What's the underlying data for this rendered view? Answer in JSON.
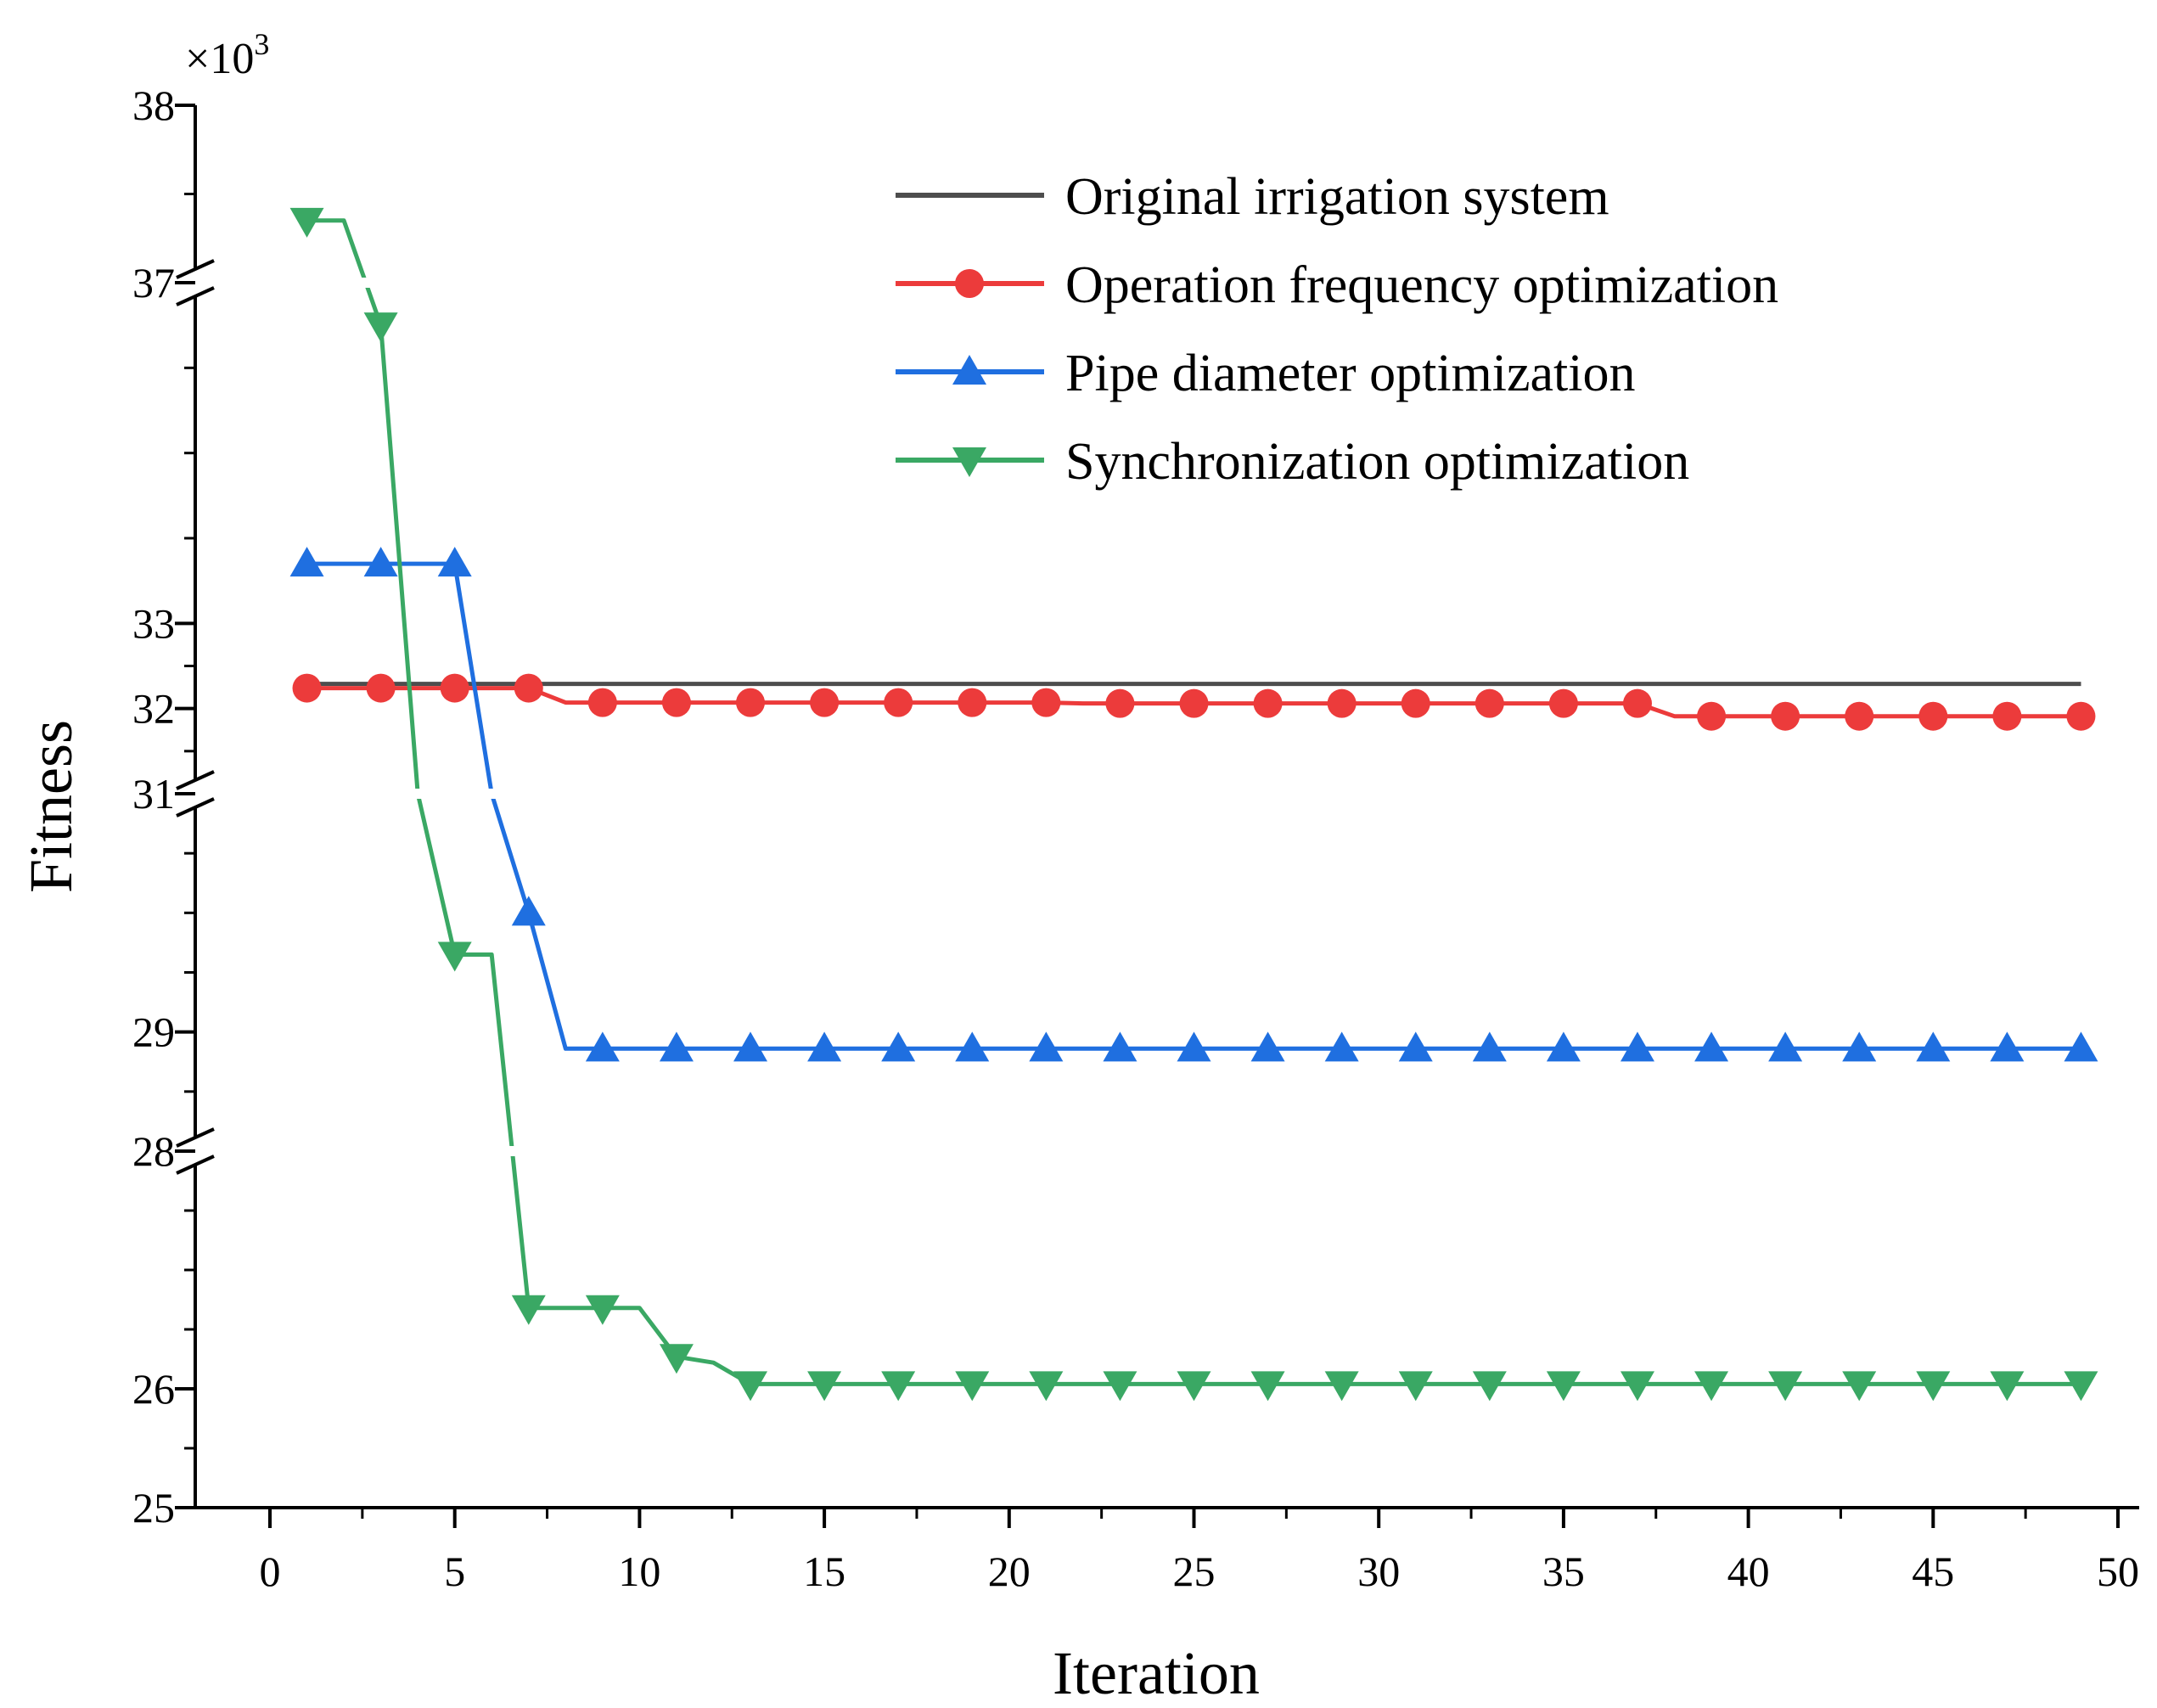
{
  "chart_data": {
    "type": "line",
    "title": "",
    "xlabel": "Iteration",
    "ylabel": "Fitness",
    "y_multiplier": "×10",
    "y_multiplier_exp": "3",
    "xlim": [
      -2,
      50
    ],
    "x_ticks": [
      0,
      5,
      10,
      15,
      20,
      25,
      30,
      35,
      40,
      45,
      50
    ],
    "y_ticks": [
      {
        "value": 25,
        "label": "25"
      },
      {
        "value": 26,
        "label": "26"
      },
      {
        "value": 28,
        "label": "28"
      },
      {
        "value": 29,
        "label": "29"
      },
      {
        "value": 31,
        "label": "31"
      },
      {
        "value": 32,
        "label": "32"
      },
      {
        "value": 33,
        "label": "33"
      },
      {
        "value": 37,
        "label": "37"
      },
      {
        "value": 38,
        "label": "38"
      }
    ],
    "y_segments": [
      {
        "range": [
          25,
          28
        ]
      },
      {
        "range": [
          28,
          31
        ]
      },
      {
        "range": [
          31,
          37
        ]
      },
      {
        "range": [
          37,
          38
        ]
      }
    ],
    "legend_position": "top-right",
    "series": [
      {
        "name": "Original irrigation system",
        "color": "#4d4d4d",
        "marker": "none",
        "x": [
          1,
          49
        ],
        "y": [
          32.29,
          32.29
        ]
      },
      {
        "name": "Operation frequency optimization",
        "color": "#ec3b3b",
        "marker": "circle",
        "x": [
          1,
          2,
          3,
          4,
          5,
          6,
          7,
          8,
          9,
          10,
          11,
          12,
          13,
          14,
          15,
          16,
          17,
          18,
          19,
          20,
          21,
          22,
          23,
          24,
          25,
          26,
          27,
          28,
          29,
          30,
          31,
          32,
          33,
          34,
          35,
          36,
          37,
          38,
          39,
          40,
          41,
          42,
          43,
          44,
          45,
          46,
          47,
          48,
          49
        ],
        "y": [
          32.24,
          32.24,
          32.24,
          32.24,
          32.24,
          32.24,
          32.24,
          32.07,
          32.07,
          32.07,
          32.07,
          32.07,
          32.07,
          32.07,
          32.07,
          32.07,
          32.07,
          32.07,
          32.07,
          32.07,
          32.07,
          32.06,
          32.06,
          32.06,
          32.06,
          32.06,
          32.06,
          32.06,
          32.06,
          32.06,
          32.06,
          32.06,
          32.06,
          32.06,
          32.06,
          32.06,
          32.06,
          31.91,
          31.91,
          31.91,
          31.91,
          31.91,
          31.91,
          31.91,
          31.91,
          31.91,
          31.91,
          31.91,
          31.91
        ]
      },
      {
        "name": "Pipe diameter optimization",
        "color": "#1f6fe0",
        "marker": "triangle-up",
        "x": [
          1,
          2,
          3,
          4,
          5,
          6,
          7,
          8,
          9,
          10,
          11,
          12,
          13,
          14,
          15,
          16,
          17,
          18,
          19,
          20,
          21,
          22,
          23,
          24,
          25,
          26,
          27,
          28,
          29,
          30,
          31,
          32,
          33,
          34,
          35,
          36,
          37,
          38,
          39,
          40,
          41,
          42,
          43,
          44,
          45,
          46,
          47,
          48,
          49
        ],
        "y": [
          33.7,
          33.7,
          33.7,
          33.7,
          33.7,
          31.0,
          30.0,
          28.86,
          28.86,
          28.86,
          28.86,
          28.86,
          28.86,
          28.86,
          28.86,
          28.86,
          28.86,
          28.86,
          28.86,
          28.86,
          28.86,
          28.86,
          28.86,
          28.86,
          28.86,
          28.86,
          28.86,
          28.86,
          28.86,
          28.86,
          28.86,
          28.86,
          28.86,
          28.86,
          28.86,
          28.86,
          28.86,
          28.86,
          28.86,
          28.86,
          28.86,
          28.86,
          28.86,
          28.86,
          28.86,
          28.86,
          28.86,
          28.86,
          28.86
        ]
      },
      {
        "name": "Synchronization optimization",
        "color": "#3aa864",
        "marker": "triangle-down",
        "x": [
          1,
          2,
          3,
          4,
          5,
          6,
          7,
          8,
          9,
          10,
          11,
          12,
          13,
          14,
          15,
          16,
          17,
          18,
          19,
          20,
          21,
          22,
          23,
          24,
          25,
          26,
          27,
          28,
          29,
          30,
          31,
          32,
          33,
          34,
          35,
          36,
          37,
          38,
          39,
          40,
          41,
          42,
          43,
          44,
          45,
          46,
          47,
          48,
          49
        ],
        "y": [
          37.35,
          37.35,
          36.5,
          31.0,
          29.65,
          29.65,
          26.68,
          26.68,
          26.68,
          26.68,
          26.27,
          26.22,
          26.04,
          26.04,
          26.04,
          26.04,
          26.04,
          26.04,
          26.04,
          26.04,
          26.04,
          26.04,
          26.04,
          26.04,
          26.04,
          26.04,
          26.04,
          26.04,
          26.04,
          26.04,
          26.04,
          26.04,
          26.04,
          26.04,
          26.04,
          26.04,
          26.04,
          26.04,
          26.04,
          26.04,
          26.04,
          26.04,
          26.04,
          26.04,
          26.04,
          26.04,
          26.04,
          26.04,
          26.04
        ]
      }
    ]
  }
}
